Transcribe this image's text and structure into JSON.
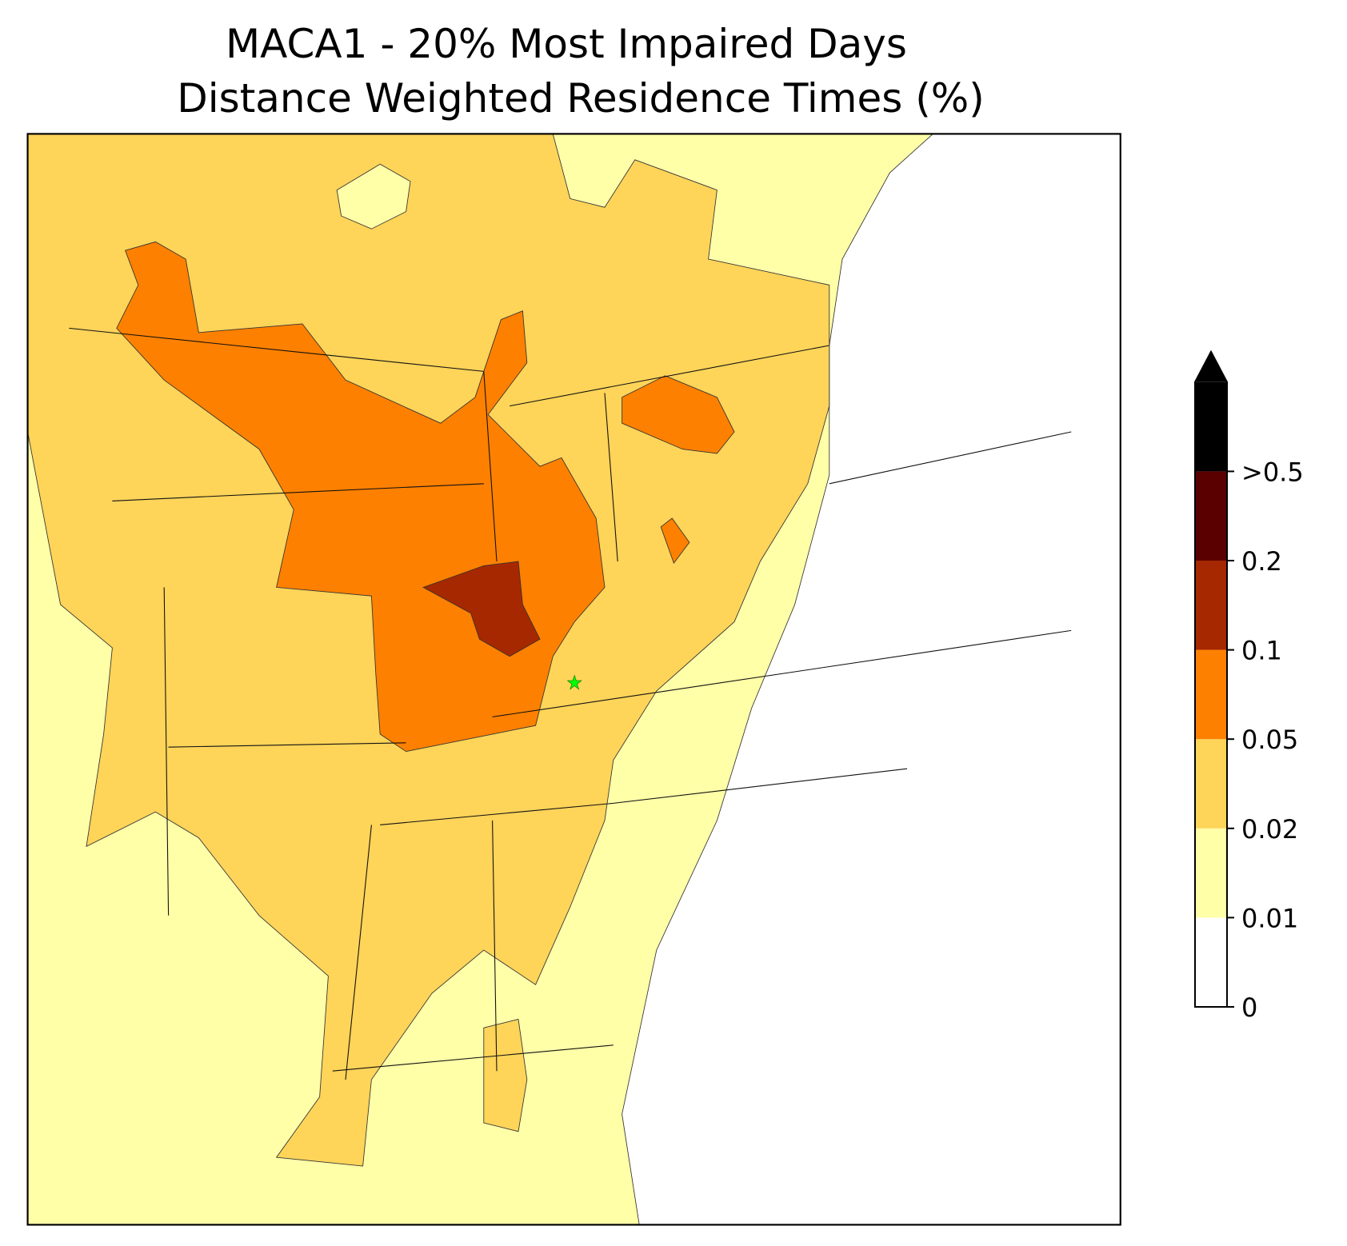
{
  "map": {
    "title": [
      "MACA1 - 20% Most Impaired Days",
      "Distance Weighted Residence Times (%)"
    ],
    "colorbar": {
      "ticks": [
        0,
        0.01,
        0.02,
        0.05,
        0.1,
        0.2,
        {
          "value": 0.5,
          "label": ">0.5"
        }
      ],
      "colors": [
        "#ffffff",
        "#ffffa8",
        "#fed459",
        "#fe8000",
        "#a62800",
        "#5a0000"
      ],
      "extend_color": "#000000"
    }
  }
}
